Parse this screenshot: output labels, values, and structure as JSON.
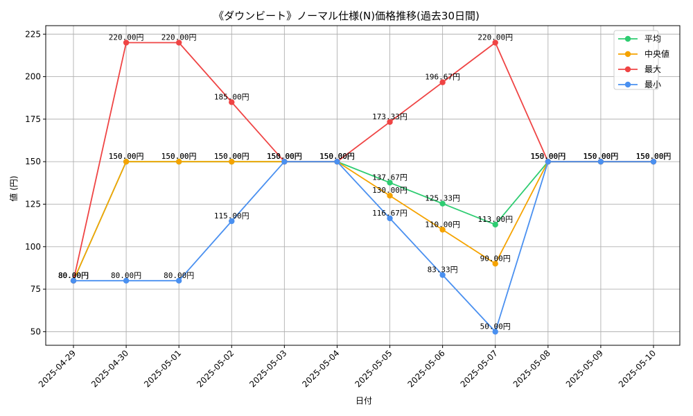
{
  "chart_data": {
    "type": "line",
    "title": "《ダウンビート》ノーマル仕様(N)価格推移(過去30日間)",
    "xlabel": "日付",
    "ylabel": "値 (円)",
    "ylim": [
      42,
      230
    ],
    "yticks": [
      50,
      75,
      100,
      125,
      150,
      175,
      200,
      225
    ],
    "grid": true,
    "legend_position": "top-right",
    "categories": [
      "2025-04-29",
      "2025-04-30",
      "2025-05-01",
      "2025-05-02",
      "2025-05-03",
      "2025-05-04",
      "2025-05-05",
      "2025-05-06",
      "2025-05-07",
      "2025-05-08",
      "2025-05-09",
      "2025-05-10"
    ],
    "series": [
      {
        "name": "平均",
        "color": "#2ecc71",
        "values": [
          80,
          150,
          150,
          150,
          150,
          150,
          137.67,
          125.33,
          113.0,
          150,
          150,
          150
        ],
        "labels": [
          "80.00円",
          "150.00円",
          "150.00円",
          "150.00円",
          "150.00円",
          "150.00円",
          "137.67円",
          "125.33円",
          "113.00円",
          "150.00円",
          "150.00円",
          "150.00円"
        ]
      },
      {
        "name": "中央値",
        "color": "#f5a300",
        "values": [
          80,
          150,
          150,
          150,
          150,
          150,
          130,
          110,
          90,
          150,
          150,
          150
        ],
        "labels": [
          "80.00円",
          "150.00円",
          "150.00円",
          "150.00円",
          "150.00円",
          "150.00円",
          "130.00円",
          "110.00円",
          "90.00円",
          "150.00円",
          "150.00円",
          "150.00円"
        ]
      },
      {
        "name": "最大",
        "color": "#ef4444",
        "values": [
          80,
          220,
          220,
          185,
          150,
          150,
          173.33,
          196.67,
          220,
          150,
          150,
          150
        ],
        "labels": [
          "80.00円",
          "220.00円",
          "220.00円",
          "185.00円",
          "150.00円",
          "150.00円",
          "173.33円",
          "196.67円",
          "220.00円",
          "150.00円",
          "150.00円",
          "150.00円"
        ]
      },
      {
        "name": "最小",
        "color": "#4a90f0",
        "values": [
          80,
          80,
          80,
          115,
          150,
          150,
          116.67,
          83.33,
          50,
          150,
          150,
          150
        ],
        "labels": [
          "80.00円",
          "80.00円",
          "80.00円",
          "115.00円",
          "150.00円",
          "150.00円",
          "116.67円",
          "83.33円",
          "50.00円",
          "150.00円",
          "150.00円",
          "150.00円"
        ]
      }
    ]
  }
}
